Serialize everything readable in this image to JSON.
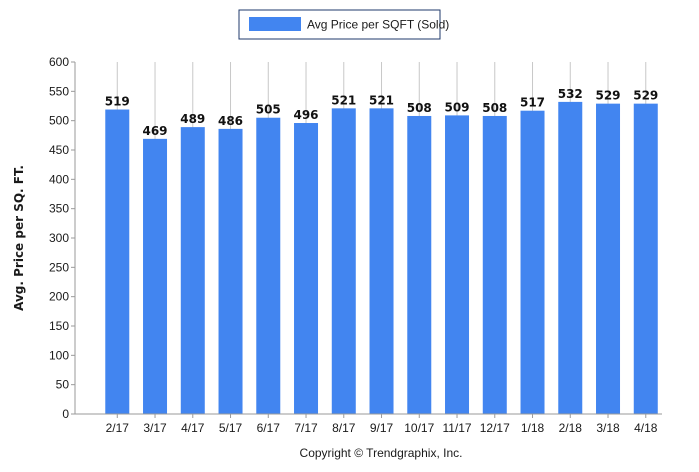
{
  "chart_data": {
    "type": "bar",
    "categories": [
      "2/17",
      "3/17",
      "4/17",
      "5/17",
      "6/17",
      "7/17",
      "8/17",
      "9/17",
      "10/17",
      "11/17",
      "12/17",
      "1/18",
      "2/18",
      "3/18",
      "4/18"
    ],
    "series": [
      {
        "name": "Avg Price per SQFT (Sold)",
        "values": [
          519,
          469,
          489,
          486,
          505,
          496,
          521,
          521,
          508,
          509,
          508,
          517,
          532,
          529,
          529
        ],
        "color": "#4285f0"
      }
    ],
    "xlabel": "",
    "ylabel": "Avg. Price per SQ. FT.",
    "ylim": [
      0,
      600
    ],
    "yticks": [
      0,
      50,
      100,
      150,
      200,
      250,
      300,
      350,
      400,
      450,
      500,
      550,
      600
    ],
    "grid": "vertical",
    "legend_position": "top-center",
    "data_labels": true
  },
  "footer": {
    "copyright": "Copyright © Trendgraphix, Inc."
  }
}
